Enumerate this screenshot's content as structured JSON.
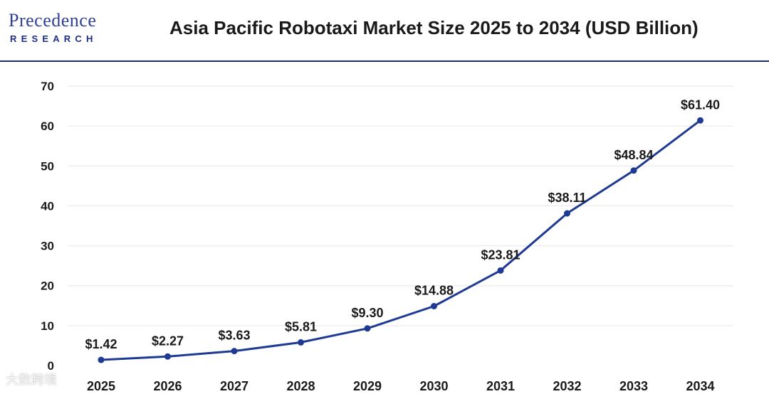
{
  "header": {
    "logo_main": "Precedence",
    "logo_sub": "RESEARCH",
    "title": "Asia Pacific Robotaxi Market Size 2025 to 2034 (USD Billion)"
  },
  "watermark": "大数跨境",
  "colors": {
    "line": "#1f3a93",
    "rule": "#1f2a72",
    "logo": "#2f3f9a"
  },
  "chart_data": {
    "type": "line",
    "title": "Asia Pacific Robotaxi Market Size 2025 to 2034 (USD Billion)",
    "xlabel": "",
    "ylabel": "",
    "categories": [
      "2025",
      "2026",
      "2027",
      "2028",
      "2029",
      "2030",
      "2031",
      "2032",
      "2033",
      "2034"
    ],
    "series": [
      {
        "values": [
          1.42,
          2.27,
          3.63,
          5.81,
          9.3,
          14.88,
          23.81,
          38.11,
          48.84,
          61.4
        ]
      }
    ],
    "data_labels": [
      "$1.42",
      "$2.27",
      "$3.63",
      "$5.81",
      "$9.30",
      "$14.88",
      "$23.81",
      "$38.11",
      "$48.84",
      "$61.40"
    ],
    "ylim": [
      0,
      70
    ],
    "yticks": [
      0,
      10,
      20,
      30,
      40,
      50,
      60,
      70
    ],
    "grid": true,
    "legend": "none"
  }
}
